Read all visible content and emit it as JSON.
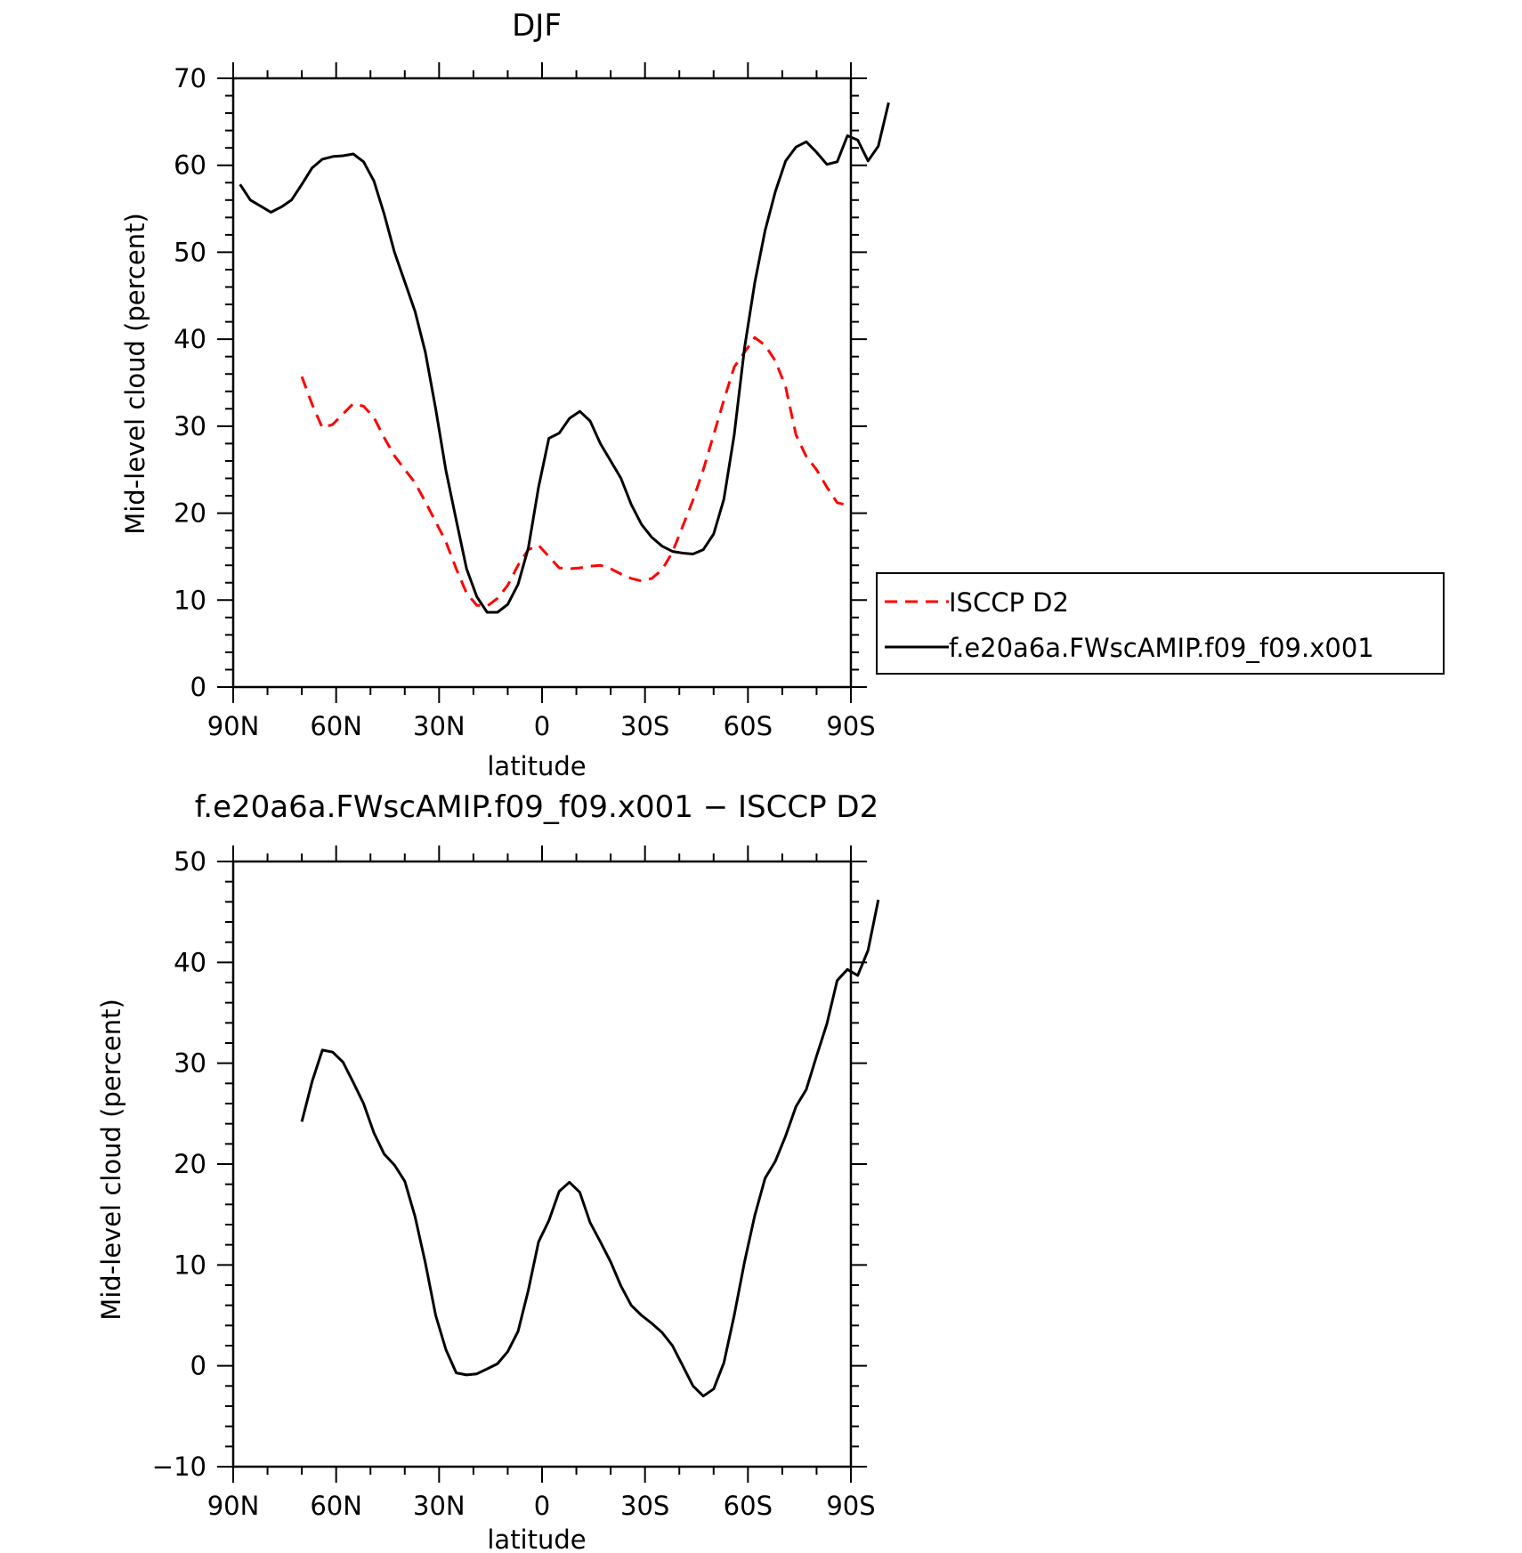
{
  "figure": {
    "top_title": "DJF",
    "bottom_title": "f.e20a6a.FWscAMIP.f09_f09.x001 − ISCCP D2"
  },
  "legend": {
    "items": [
      {
        "label": "ISCCP D2",
        "color": "#ff0000",
        "dash": "dashed"
      },
      {
        "label": "f.e20a6a.FWscAMIP.f09_f09.x001",
        "color": "#000000",
        "dash": "solid"
      }
    ]
  },
  "chart_data": [
    {
      "type": "line",
      "title": "DJF",
      "xlabel": "latitude",
      "ylabel": "Mid-level cloud (percent)",
      "xlim": [
        90,
        -90
      ],
      "ylim": [
        0,
        70
      ],
      "yticks": [
        0,
        10,
        20,
        30,
        40,
        50,
        60,
        70
      ],
      "xticks": [
        {
          "value": 90,
          "label": "90N"
        },
        {
          "value": 60,
          "label": "60N"
        },
        {
          "value": 30,
          "label": "30N"
        },
        {
          "value": 0,
          "label": "0"
        },
        {
          "value": -30,
          "label": "30S"
        },
        {
          "value": -60,
          "label": "60S"
        },
        {
          "value": -90,
          "label": "90S"
        }
      ],
      "legend_position": "right",
      "series": [
        {
          "name": "ISCCP D2",
          "color": "#ff0000",
          "dash": "dashed",
          "points": [
            [
              70,
              35.7
            ],
            [
              67,
              32.5
            ],
            [
              64,
              29.8
            ],
            [
              61,
              30.2
            ],
            [
              58,
              31.4
            ],
            [
              55,
              32.6
            ],
            [
              52,
              32.3
            ],
            [
              49,
              31.0
            ],
            [
              46,
              28.7
            ],
            [
              43,
              26.6
            ],
            [
              40,
              25.0
            ],
            [
              37,
              23.5
            ],
            [
              34,
              21.3
            ],
            [
              31,
              19.0
            ],
            [
              28,
              16.7
            ],
            [
              25,
              13.6
            ],
            [
              22,
              10.8
            ],
            [
              19,
              9.4
            ],
            [
              16,
              9.3
            ],
            [
              13,
              10.2
            ],
            [
              10,
              11.7
            ],
            [
              7,
              14.0
            ],
            [
              4,
              15.8
            ],
            [
              1,
              16.3
            ],
            [
              -2,
              15.0
            ],
            [
              -5,
              13.7
            ],
            [
              -8,
              13.6
            ],
            [
              -11,
              13.7
            ],
            [
              -14,
              13.9
            ],
            [
              -17,
              14.0
            ],
            [
              -20,
              13.6
            ],
            [
              -23,
              13.0
            ],
            [
              -26,
              12.5
            ],
            [
              -29,
              12.2
            ],
            [
              -32,
              12.5
            ],
            [
              -35,
              13.5
            ],
            [
              -38,
              15.5
            ],
            [
              -41,
              18.5
            ],
            [
              -44,
              21.5
            ],
            [
              -47,
              25.0
            ],
            [
              -50,
              29.0
            ],
            [
              -53,
              33.0
            ],
            [
              -56,
              36.8
            ],
            [
              -59,
              38.5
            ],
            [
              -62,
              40.2
            ],
            [
              -65,
              39.3
            ],
            [
              -68,
              37.5
            ],
            [
              -71,
              34.5
            ],
            [
              -74,
              29.0
            ],
            [
              -77,
              26.5
            ],
            [
              -80,
              25.0
            ],
            [
              -83,
              23.0
            ],
            [
              -86,
              21.2
            ],
            [
              -88,
              21.0
            ]
          ]
        },
        {
          "name": "f.e20a6a.FWscAMIP.f09_f09.x001",
          "color": "#000000",
          "dash": "solid",
          "points": [
            [
              88,
              57.8
            ],
            [
              85,
              56.0
            ],
            [
              82,
              55.3
            ],
            [
              79,
              54.6
            ],
            [
              76,
              55.2
            ],
            [
              73,
              56.0
            ],
            [
              70,
              57.8
            ],
            [
              67,
              59.7
            ],
            [
              64,
              60.7
            ],
            [
              61,
              61.0
            ],
            [
              58,
              61.1
            ],
            [
              55,
              61.3
            ],
            [
              52,
              60.4
            ],
            [
              49,
              58.2
            ],
            [
              46,
              54.4
            ],
            [
              43,
              50.0
            ],
            [
              40,
              46.6
            ],
            [
              37,
              43.2
            ],
            [
              34,
              38.5
            ],
            [
              31,
              32.0
            ],
            [
              28,
              24.9
            ],
            [
              25,
              19.2
            ],
            [
              22,
              13.6
            ],
            [
              19,
              10.4
            ],
            [
              16,
              8.6
            ],
            [
              13,
              8.6
            ],
            [
              10,
              9.5
            ],
            [
              7,
              11.8
            ],
            [
              4,
              16.0
            ],
            [
              1,
              23.0
            ],
            [
              -2,
              28.6
            ],
            [
              -5,
              29.2
            ],
            [
              -8,
              30.9
            ],
            [
              -11,
              31.7
            ],
            [
              -14,
              30.6
            ],
            [
              -17,
              28.0
            ],
            [
              -20,
              26.0
            ],
            [
              -23,
              24.0
            ],
            [
              -26,
              21.0
            ],
            [
              -29,
              18.7
            ],
            [
              -32,
              17.2
            ],
            [
              -35,
              16.2
            ],
            [
              -38,
              15.6
            ],
            [
              -41,
              15.4
            ],
            [
              -44,
              15.3
            ],
            [
              -47,
              15.8
            ],
            [
              -50,
              17.6
            ],
            [
              -53,
              21.6
            ],
            [
              -56,
              29.0
            ],
            [
              -59,
              39.0
            ],
            [
              -62,
              46.5
            ],
            [
              -65,
              52.5
            ],
            [
              -68,
              57.0
            ],
            [
              -71,
              60.5
            ],
            [
              -74,
              62.1
            ],
            [
              -77,
              62.7
            ],
            [
              -80,
              61.5
            ],
            [
              -83,
              60.1
            ],
            [
              -86,
              60.4
            ],
            [
              -89,
              63.4
            ],
            [
              -92,
              62.9
            ],
            [
              -95,
              60.5
            ],
            [
              -98,
              62.2
            ],
            [
              -101,
              67.2
            ]
          ]
        }
      ]
    },
    {
      "type": "line",
      "title": "f.e20a6a.FWscAMIP.f09_f09.x001 − ISCCP D2",
      "xlabel": "latitude",
      "ylabel": "Mid-level cloud (percent)",
      "xlim": [
        90,
        -90
      ],
      "ylim": [
        -10,
        50
      ],
      "yticks": [
        -10,
        0,
        10,
        20,
        30,
        40,
        50
      ],
      "xticks": [
        {
          "value": 90,
          "label": "90N"
        },
        {
          "value": 60,
          "label": "60N"
        },
        {
          "value": 30,
          "label": "30N"
        },
        {
          "value": 0,
          "label": "0"
        },
        {
          "value": -30,
          "label": "30S"
        },
        {
          "value": -60,
          "label": "60S"
        },
        {
          "value": -90,
          "label": "90S"
        }
      ],
      "series": [
        {
          "color": "#000000",
          "dash": "solid",
          "points": [
            [
              70,
              24.2
            ],
            [
              67,
              28.2
            ],
            [
              64,
              31.3
            ],
            [
              61,
              31.1
            ],
            [
              58,
              30.1
            ],
            [
              55,
              28.1
            ],
            [
              52,
              26.0
            ],
            [
              49,
              23.1
            ],
            [
              46,
              21.0
            ],
            [
              43,
              19.9
            ],
            [
              40,
              18.3
            ],
            [
              37,
              14.8
            ],
            [
              34,
              10.2
            ],
            [
              31,
              5.0
            ],
            [
              28,
              1.6
            ],
            [
              25,
              -0.7
            ],
            [
              22,
              -0.9
            ],
            [
              19,
              -0.8
            ],
            [
              16,
              -0.3
            ],
            [
              13,
              0.2
            ],
            [
              10,
              1.4
            ],
            [
              7,
              3.4
            ],
            [
              4,
              7.5
            ],
            [
              1,
              12.3
            ],
            [
              -2,
              14.4
            ],
            [
              -5,
              17.3
            ],
            [
              -8,
              18.2
            ],
            [
              -11,
              17.2
            ],
            [
              -14,
              14.2
            ],
            [
              -17,
              12.3
            ],
            [
              -20,
              10.3
            ],
            [
              -23,
              7.9
            ],
            [
              -26,
              6.0
            ],
            [
              -29,
              5.0
            ],
            [
              -32,
              4.2
            ],
            [
              -35,
              3.3
            ],
            [
              -38,
              2.0
            ],
            [
              -41,
              0.0
            ],
            [
              -44,
              -2.0
            ],
            [
              -47,
              -3.0
            ],
            [
              -50,
              -2.3
            ],
            [
              -53,
              0.3
            ],
            [
              -56,
              5.0
            ],
            [
              -59,
              10.3
            ],
            [
              -62,
              14.9
            ],
            [
              -65,
              18.6
            ],
            [
              -68,
              20.3
            ],
            [
              -71,
              22.8
            ],
            [
              -74,
              25.7
            ],
            [
              -77,
              27.4
            ],
            [
              -80,
              30.7
            ],
            [
              -83,
              33.9
            ],
            [
              -86,
              38.2
            ],
            [
              -89,
              39.3
            ],
            [
              -92,
              38.7
            ],
            [
              -95,
              41.2
            ],
            [
              -98,
              46.2
            ]
          ]
        }
      ]
    }
  ]
}
